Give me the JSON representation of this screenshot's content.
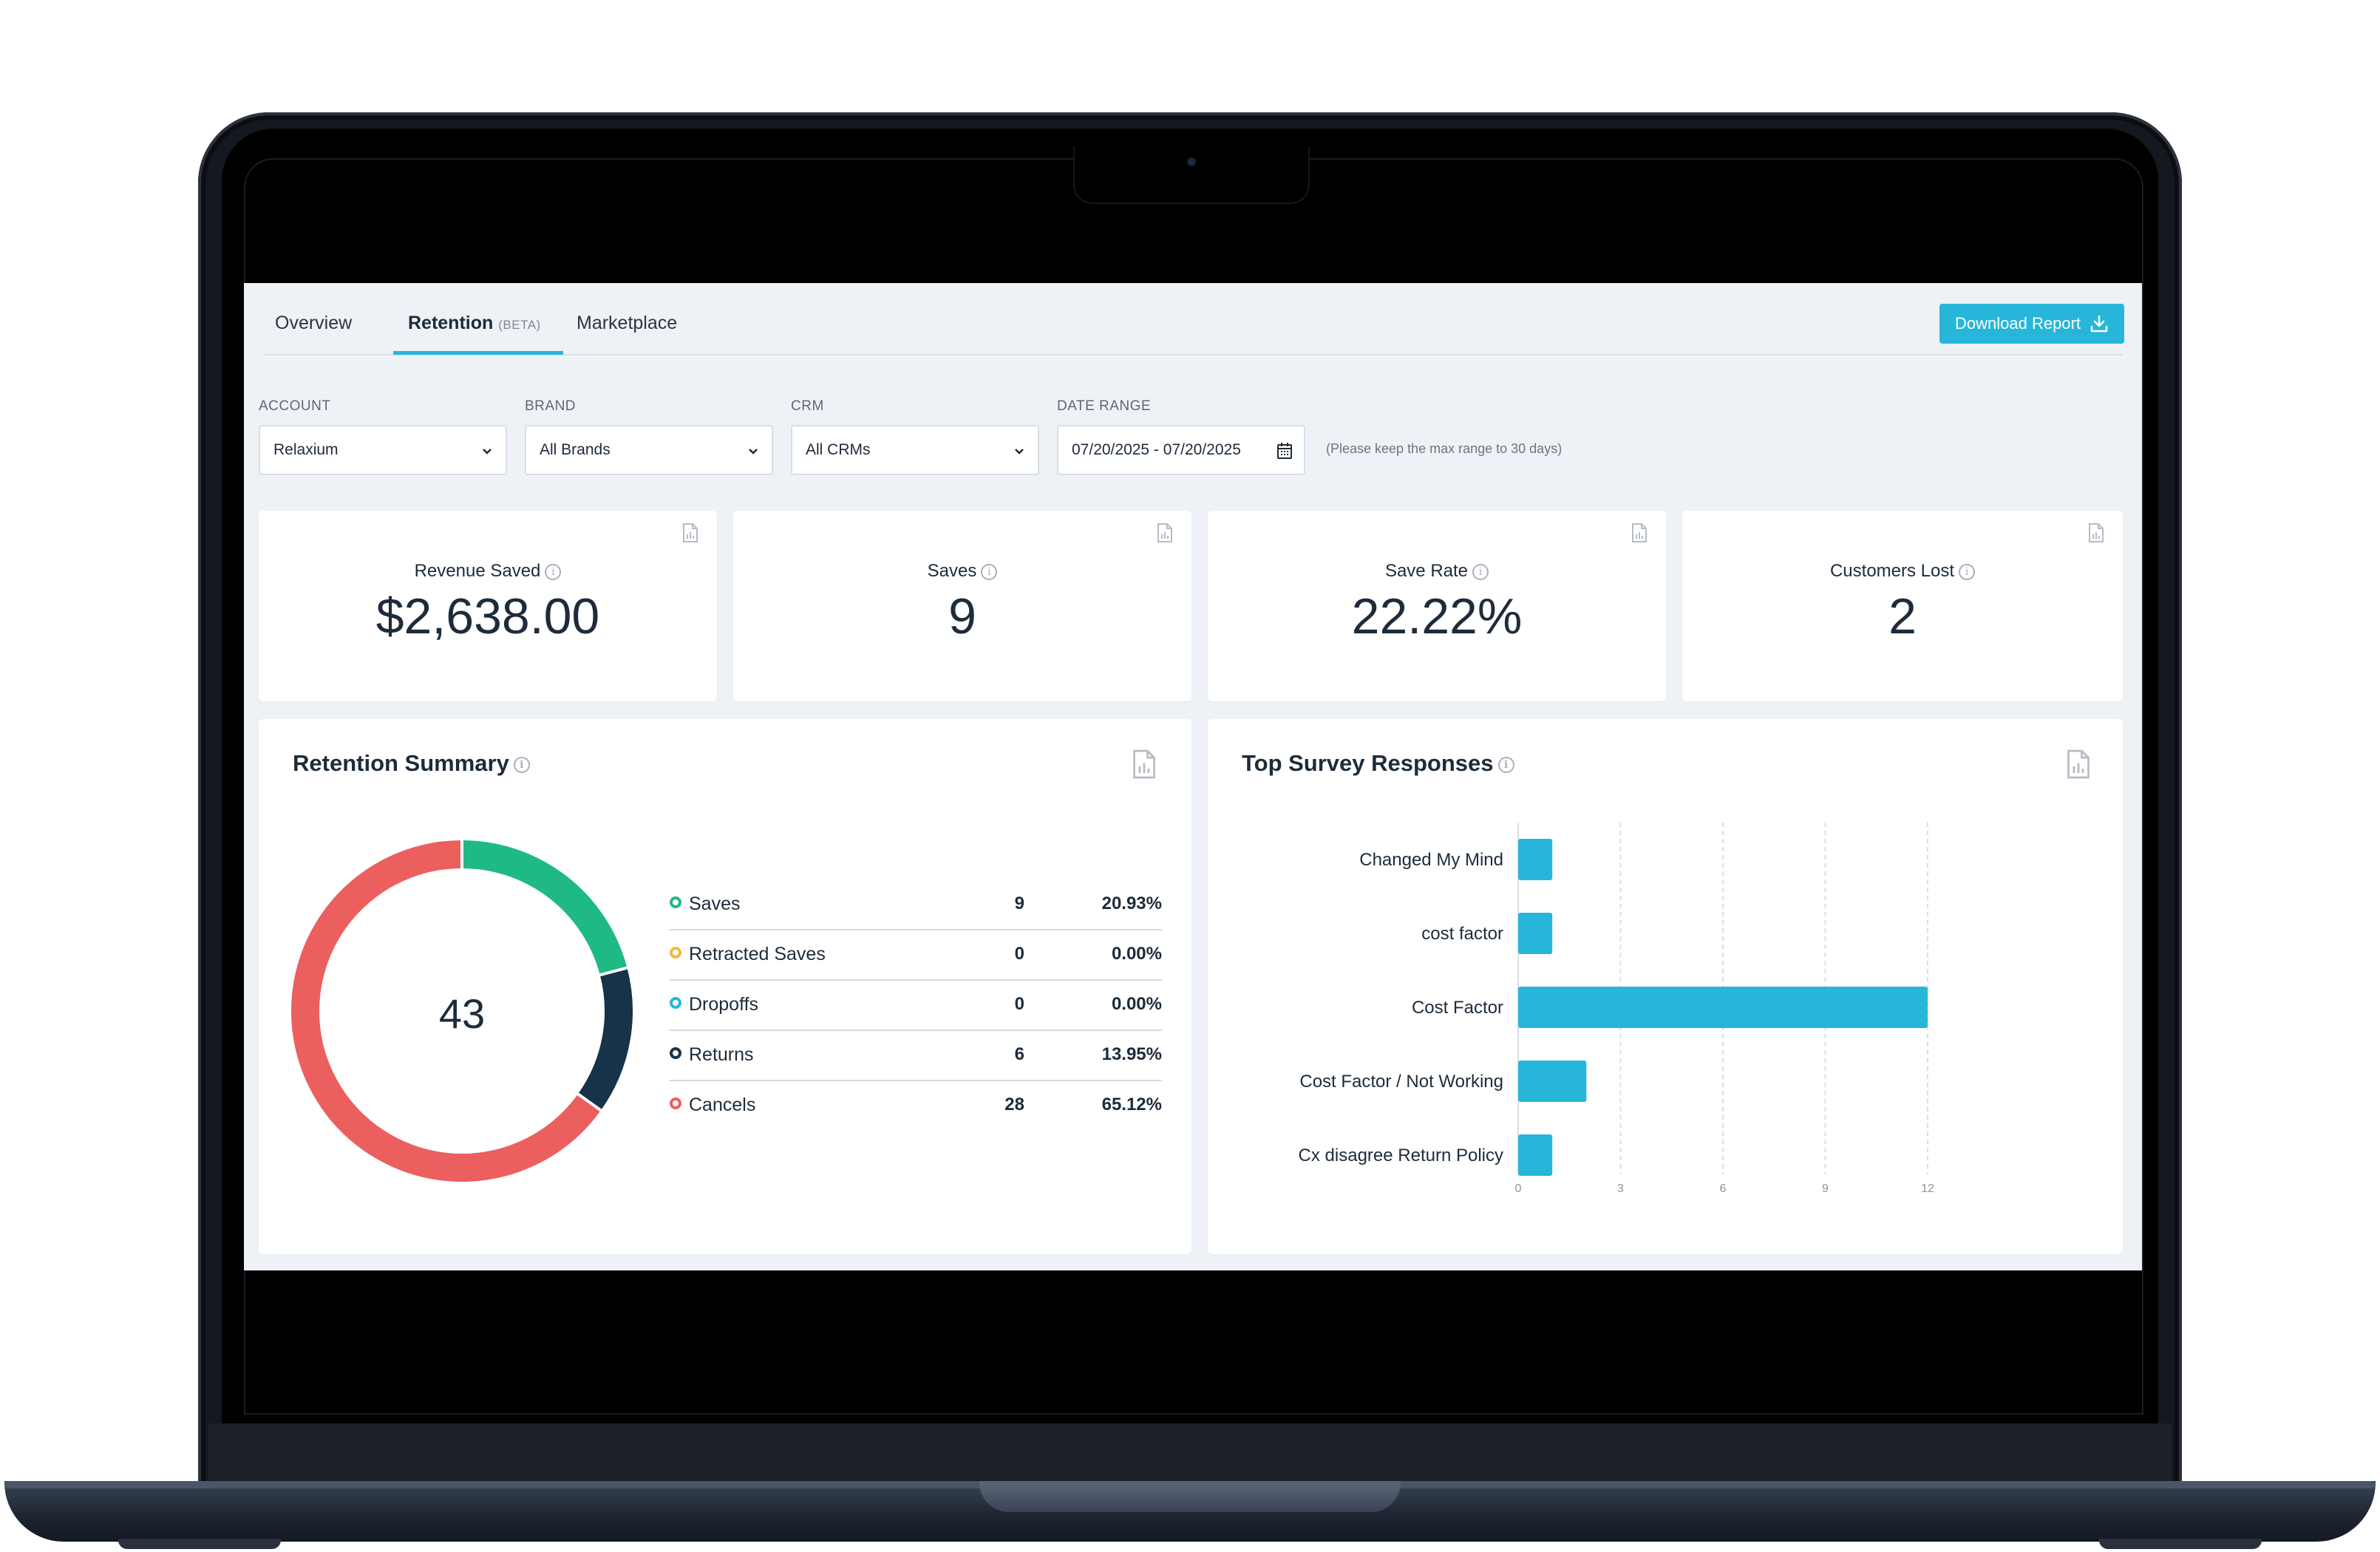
{
  "tabs": [
    {
      "label": "Overview"
    },
    {
      "label": "Retention",
      "badge": "(BETA)",
      "active": true
    },
    {
      "label": "Marketplace"
    }
  ],
  "download_button": {
    "label": "Download Report",
    "icon": "download-icon"
  },
  "filters": {
    "account": {
      "label": "ACCOUNT",
      "value": "Relaxium"
    },
    "brand": {
      "label": "BRAND",
      "value": "All Brands"
    },
    "crm": {
      "label": "CRM",
      "value": "All CRMs"
    },
    "date_range": {
      "label": "DATE RANGE",
      "value": "07/20/2025 - 07/20/2025",
      "hint": "(Please keep the max range to 30 days)"
    }
  },
  "stats": [
    {
      "label": "Revenue Saved",
      "value": "$2,638.00"
    },
    {
      "label": "Saves",
      "value": "9"
    },
    {
      "label": "Save Rate",
      "value": "22.22%"
    },
    {
      "label": "Customers Lost",
      "value": "2"
    }
  ],
  "retention_summary": {
    "title": "Retention Summary",
    "total": "43",
    "items": [
      {
        "name": "Saves",
        "count": "9",
        "percent": "20.93%",
        "color": "#1fba83"
      },
      {
        "name": "Retracted Saves",
        "count": "0",
        "percent": "0.00%",
        "color": "#f0b942"
      },
      {
        "name": "Dropoffs",
        "count": "0",
        "percent": "0.00%",
        "color": "#27b6d9"
      },
      {
        "name": "Returns",
        "count": "6",
        "percent": "13.95%",
        "color": "#173349"
      },
      {
        "name": "Cancels",
        "count": "28",
        "percent": "65.12%",
        "color": "#ec5f5f"
      }
    ]
  },
  "chart_data": {
    "type": "bar",
    "orientation": "horizontal",
    "title": "Top Survey Responses",
    "categories": [
      "Changed My Mind",
      "cost factor",
      "Cost Factor",
      "Cost Factor / Not Working",
      "Cx disagree Return Policy"
    ],
    "values": [
      1,
      1,
      12,
      2,
      1
    ],
    "xticks": [
      "0",
      "3",
      "6",
      "9",
      "12"
    ],
    "xlim": [
      0,
      12
    ],
    "grid": true,
    "bar_color": "#27b6d9"
  },
  "colors": {
    "accent": "#27b6d9",
    "background": "#eef2f6"
  }
}
